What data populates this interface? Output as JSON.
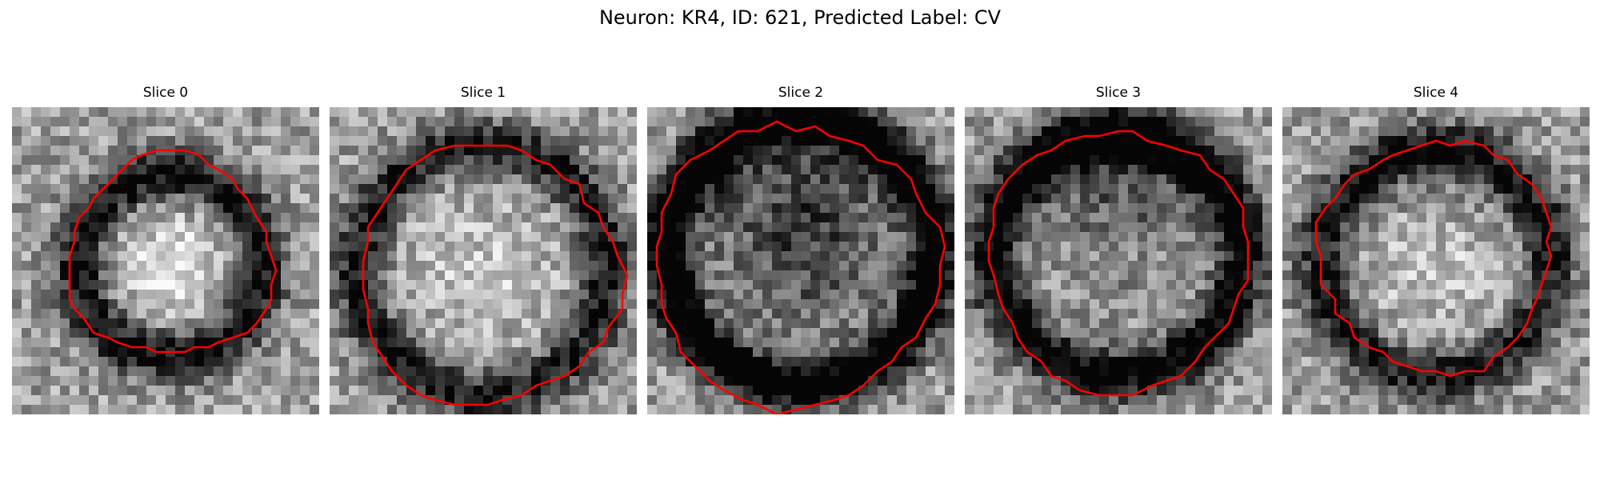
{
  "figure": {
    "title": "Neuron: KR4, ID: 621, Predicted Label: CV"
  },
  "slices": [
    {
      "label": "Slice 0"
    },
    {
      "label": "Slice 1"
    },
    {
      "label": "Slice 2"
    },
    {
      "label": "Slice 3"
    },
    {
      "label": "Slice 4"
    }
  ],
  "colors": {
    "contour": "#ff0000",
    "colormap": "grayscale"
  }
}
